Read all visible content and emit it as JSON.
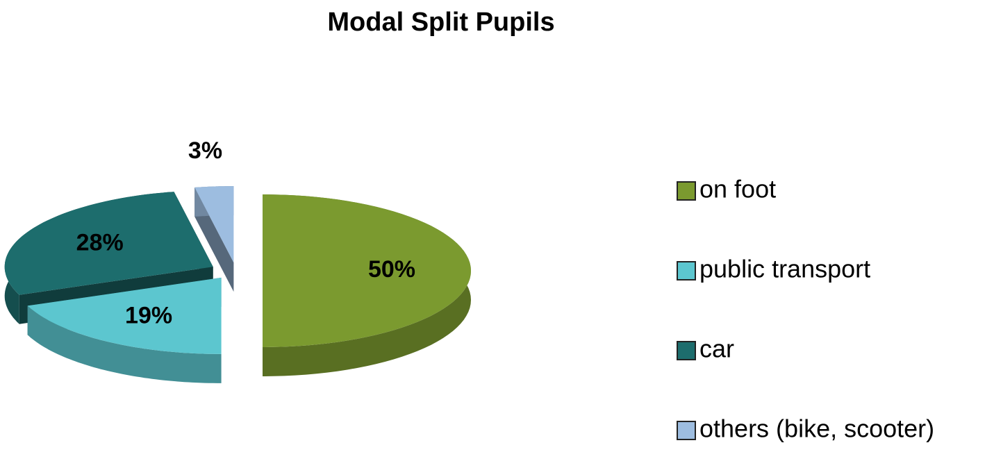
{
  "chart_data": {
    "type": "pie3d",
    "title": "Modal Split Pupils",
    "categories": [
      "on foot",
      "public transport",
      "car",
      "others (bike, scooter)"
    ],
    "values": [
      50,
      19,
      28,
      3
    ],
    "value_labels": [
      "50%",
      "19%",
      "28%",
      "3%"
    ],
    "colors": [
      "#7b9a2f",
      "#5cc6cf",
      "#1d6d6d",
      "#9dbde0"
    ],
    "legend": "right"
  }
}
